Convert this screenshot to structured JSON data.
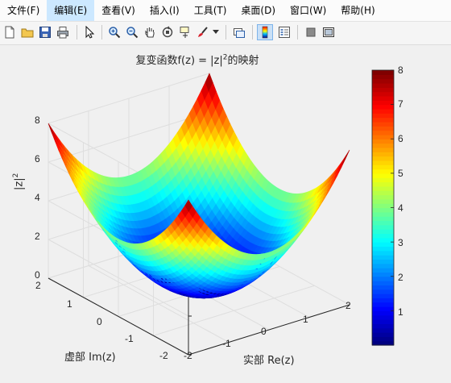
{
  "menubar": {
    "items": [
      {
        "label": "文件(F)"
      },
      {
        "label": "编辑(E)",
        "active": true
      },
      {
        "label": "查看(V)"
      },
      {
        "label": "插入(I)"
      },
      {
        "label": "工具(T)"
      },
      {
        "label": "桌面(D)"
      },
      {
        "label": "窗口(W)"
      },
      {
        "label": "帮助(H)"
      }
    ]
  },
  "toolbar": {
    "buttons": [
      "new-figure-icon",
      "open-folder-icon",
      "save-icon",
      "print-icon",
      "pointer-icon",
      "zoom-in-icon",
      "zoom-out-icon",
      "pan-icon",
      "rotate-3d-icon",
      "data-cursor-icon",
      "brush-icon",
      "link-plot-icon",
      "colorbar-icon",
      "legend-icon",
      "hide-plot-tools-icon",
      "show-plot-tools-icon"
    ]
  },
  "plot": {
    "title_main": "复变函数f(z) = |z|",
    "title_sup": "2",
    "title_tail": "的映射",
    "zlabel_main": "|z|",
    "zlabel_sup": "2",
    "xlabel": "实部 Re(z)",
    "ylabel": "虚部 Im(z)",
    "zticks": [
      "0",
      "2",
      "4",
      "6",
      "8"
    ],
    "xticks": [
      "-2",
      "-1",
      "0",
      "1",
      "2"
    ],
    "yticks": [
      "-2",
      "-1",
      "0",
      "1",
      "2"
    ],
    "colorbar_ticks": [
      "1",
      "2",
      "3",
      "4",
      "5",
      "6",
      "7",
      "8"
    ],
    "colormap": "jet"
  },
  "chart_data": {
    "type": "surface",
    "function": "|z|^2 = x^2 + y^2",
    "x_range": [
      -2,
      2
    ],
    "y_range": [
      -2,
      2
    ],
    "z_range": [
      0,
      8
    ],
    "color_range": [
      0,
      8
    ],
    "colormap": "jet",
    "grid": true
  }
}
